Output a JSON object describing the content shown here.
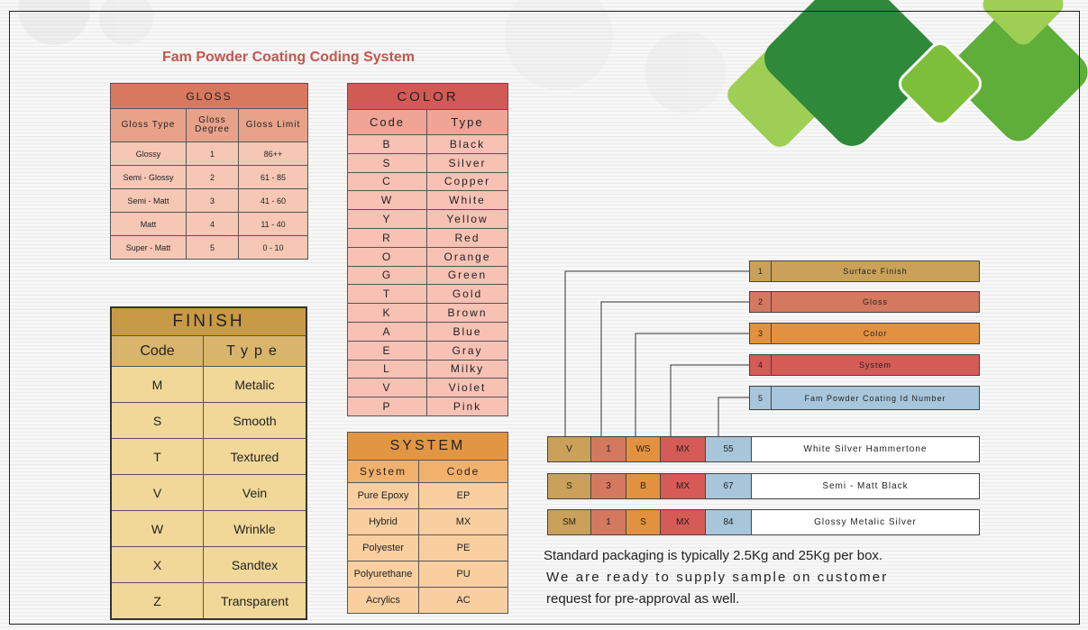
{
  "title": "Fam Powder Coating Coding System",
  "gloss": {
    "header": "GLOSS",
    "columns": [
      "Gloss Type",
      "Gloss Degree",
      "Gloss Limit"
    ],
    "rows": [
      [
        "Glossy",
        "1",
        "86++"
      ],
      [
        "Semi - Glossy",
        "2",
        "61 - 85"
      ],
      [
        "Semi - Matt",
        "3",
        "41 - 60"
      ],
      [
        "Matt",
        "4",
        "11 - 40"
      ],
      [
        "Super - Matt",
        "5",
        "0 - 10"
      ]
    ]
  },
  "color": {
    "header": "COLOR",
    "columns": [
      "Code",
      "Type"
    ],
    "rows": [
      [
        "B",
        "Black"
      ],
      [
        "S",
        "Silver"
      ],
      [
        "C",
        "Copper"
      ],
      [
        "W",
        "White"
      ],
      [
        "Y",
        "Yellow"
      ],
      [
        "R",
        "Red"
      ],
      [
        "O",
        "Orange"
      ],
      [
        "G",
        "Green"
      ],
      [
        "T",
        "Gold"
      ],
      [
        "K",
        "Brown"
      ],
      [
        "A",
        "Blue"
      ],
      [
        "E",
        "Gray"
      ],
      [
        "L",
        "Milky"
      ],
      [
        "V",
        "Violet"
      ],
      [
        "P",
        "Pink"
      ]
    ]
  },
  "finish": {
    "header": "FINISH",
    "columns": [
      "Code",
      "Type"
    ],
    "rows": [
      [
        "M",
        "Metalic"
      ],
      [
        "S",
        "Smooth"
      ],
      [
        "T",
        "Textured"
      ],
      [
        "V",
        "Vein"
      ],
      [
        "W",
        "Wrinkle"
      ],
      [
        "X",
        "Sandtex"
      ],
      [
        "Z",
        "Transparent"
      ]
    ]
  },
  "system": {
    "header": "SYSTEM",
    "columns": [
      "System",
      "Code"
    ],
    "rows": [
      [
        "Pure Epoxy",
        "EP"
      ],
      [
        "Hybrid",
        "MX"
      ],
      [
        "Polyester",
        "PE"
      ],
      [
        "Polyurethane",
        "PU"
      ],
      [
        "Acrylics",
        "AC"
      ]
    ]
  },
  "legend": [
    {
      "num": "1",
      "label": "Surface Finish",
      "color": "#c9a15a"
    },
    {
      "num": "2",
      "label": "Gloss",
      "color": "#d4785f"
    },
    {
      "num": "3",
      "label": "Color",
      "color": "#e2923f"
    },
    {
      "num": "4",
      "label": "System",
      "color": "#d65a56"
    },
    {
      "num": "5",
      "label": "Fam Powder Coating Id Number",
      "color": "#a7c6dc"
    }
  ],
  "examples": [
    {
      "codes": [
        "V",
        "1",
        "WS",
        "MX",
        "55"
      ],
      "description": "White Silver Hammertone"
    },
    {
      "codes": [
        "S",
        "3",
        "B",
        "MX",
        "67"
      ],
      "description": "Semi - Matt Black"
    },
    {
      "codes": [
        "SM",
        "1",
        "S",
        "MX",
        "84"
      ],
      "description": "Glossy Metalic Silver"
    }
  ],
  "note": [
    "Standard packaging is typically 2.5Kg and 25Kg per box.",
    "We are ready to supply sample on customer",
    "request for pre-approval as well."
  ],
  "colors": {
    "title": "#c4564b",
    "deco_dark_green": "#2e8a3a",
    "deco_light_green": "#7dbf3a"
  }
}
